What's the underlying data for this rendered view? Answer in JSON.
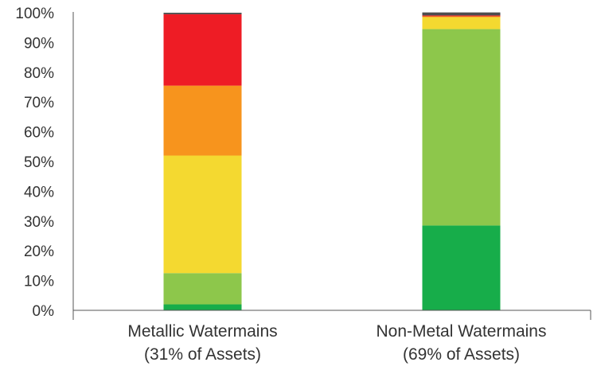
{
  "chart_data": {
    "type": "bar",
    "stacked": true,
    "categories": [
      [
        "Metallic Watermains",
        "(31% of Assets)"
      ],
      [
        "Non-Metal Watermains",
        "(69% of Assets)"
      ]
    ],
    "ylim": [
      0,
      100
    ],
    "yticks": [
      "0%",
      "10%",
      "20%",
      "30%",
      "40%",
      "50%",
      "60%",
      "70%",
      "80%",
      "90%",
      "100%"
    ],
    "grid": false,
    "series": [
      {
        "color": "#17ad4a",
        "values": [
          2,
          28.5
        ]
      },
      {
        "color": "#8dc74b",
        "values": [
          10.5,
          66
        ]
      },
      {
        "color": "#f4d930",
        "values": [
          39.5,
          4
        ]
      },
      {
        "color": "#f7941d",
        "values": [
          23.5,
          0.3
        ]
      },
      {
        "color": "#ee1c25",
        "values": [
          24,
          0.3
        ]
      },
      {
        "color": "#4d4d4d",
        "values": [
          0.5,
          1
        ]
      }
    ]
  }
}
